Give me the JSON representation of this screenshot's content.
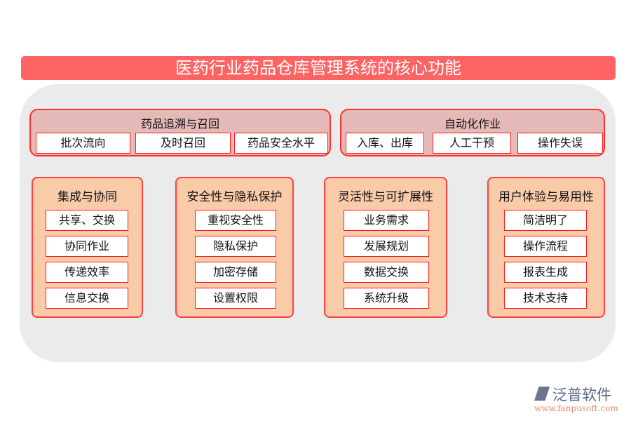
{
  "title": "医药行业药品仓库管理系统的核心功能",
  "top_groups": [
    {
      "title": "药品追溯与召回",
      "items": [
        "批次流向",
        "及时召回",
        "药品安全水平"
      ]
    },
    {
      "title": "自动化作业",
      "items": [
        "入库、出库",
        "人工干预",
        "操作失误"
      ]
    }
  ],
  "cards": [
    {
      "title": "集成与协同",
      "items": [
        "共享、交换",
        "协同作业",
        "传递效率",
        "信息交换"
      ]
    },
    {
      "title": "安全性与隐私保护",
      "items": [
        "重视安全性",
        "隐私保护",
        "加密存储",
        "设置权限"
      ]
    },
    {
      "title": "灵活性与可扩展性",
      "items": [
        "业务需求",
        "发展规划",
        "数据交换",
        "系统升级"
      ]
    },
    {
      "title": "用户体验与易用性",
      "items": [
        "简洁明了",
        "操作流程",
        "报表生成",
        "技术支持"
      ]
    }
  ],
  "logo": {
    "brand": "泛普软件",
    "url": "www.fanpusoft.com"
  },
  "colors": {
    "title_bar": "#ff6464",
    "group_fill": "#e6b9b9",
    "card_fill": "#f9cba9",
    "border": "#ff1a1a",
    "background": "#ebebeb"
  }
}
